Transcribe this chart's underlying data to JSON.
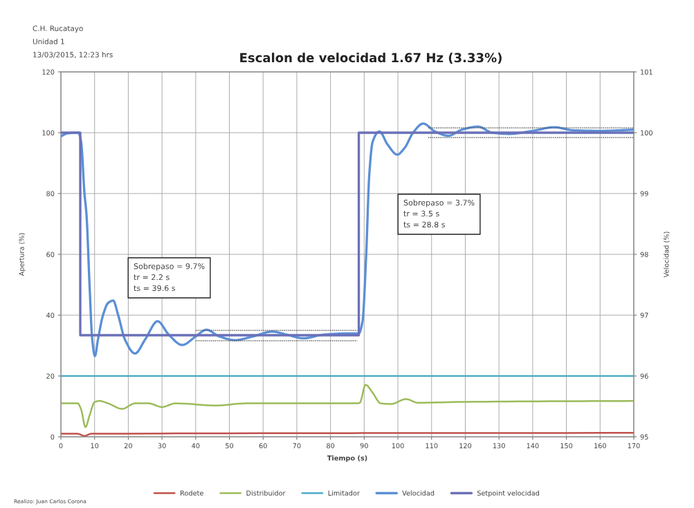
{
  "chart_data": {
    "type": "line",
    "title": "Escalon de velocidad 1.67 Hz (3.33%)",
    "xlabel": "Tiempo (s)",
    "ylabel": "Apertura (%)",
    "y2label": "Velocidad (%)",
    "xlim": [
      0,
      170
    ],
    "xticks": [
      0,
      10,
      20,
      30,
      40,
      50,
      60,
      70,
      80,
      90,
      100,
      110,
      120,
      130,
      140,
      150,
      160,
      170
    ],
    "ylim": [
      0,
      120
    ],
    "yticks": [
      0,
      20,
      40,
      60,
      80,
      100,
      120
    ],
    "y2lim": [
      95,
      101
    ],
    "y2ticks": [
      95,
      96,
      97,
      98,
      99,
      100,
      101
    ],
    "grid": true,
    "legend": "bottom",
    "annotations": [
      "C.H. Rucatayo",
      "Unidad 1",
      "13/03/2015, 12:23 hrs",
      "Sobrepaso = 9.7%\ntr = 2.2 s\nts = 39.6 s",
      "Sobrepaso = 3.7%\ntr = 3.5 s\nts = 28.8 s",
      "Realizo: Juan Carlos Corona"
    ],
    "series": [
      {
        "name": "Rodete",
        "color": "#c0504d",
        "axis": "y",
        "x": [
          0,
          5,
          7,
          9,
          170
        ],
        "values": [
          1,
          1,
          0.3,
          1,
          1.3
        ]
      },
      {
        "name": "Distribuidor",
        "color": "#9bbb59",
        "axis": "y",
        "x": [
          0,
          5,
          6,
          7.3,
          8.5,
          10,
          11.4,
          14,
          18.2,
          22,
          26,
          30,
          34,
          46,
          55,
          70,
          88,
          88.7,
          90.4,
          92.5,
          94.9,
          98,
          102.4,
          106,
          120,
          170
        ],
        "values": [
          11,
          11,
          9,
          3.2,
          7,
          11.4,
          11.8,
          11,
          9.2,
          11,
          11,
          9.8,
          11,
          10.3,
          11,
          11,
          11,
          11.2,
          17.1,
          14.5,
          11,
          10.8,
          12.4,
          11.2,
          11.5,
          11.8
        ]
      },
      {
        "name": "Limitador",
        "color": "#4bacc6",
        "axis": "y",
        "x": [
          0,
          170
        ],
        "values": [
          20,
          20
        ]
      },
      {
        "color": "#555555",
        "axis": "y2",
        "line_style": "dotted",
        "x": [
          40,
          88
        ],
        "values": [
          96.75,
          96.75
        ]
      },
      {
        "color": "#555555",
        "axis": "y2",
        "line_style": "dotted",
        "x": [
          40,
          88
        ],
        "values": [
          96.58,
          96.58
        ]
      },
      {
        "color": "#555555",
        "axis": "y2",
        "line_style": "dotted",
        "x": [
          109,
          170
        ],
        "values": [
          100.08,
          100.08
        ]
      },
      {
        "color": "#555555",
        "axis": "y2",
        "line_style": "dotted",
        "x": [
          109,
          170
        ],
        "values": [
          99.92,
          99.92
        ]
      },
      {
        "name": "Velocidad",
        "color": "#5b8fd6",
        "axis": "y2",
        "x": [
          0,
          2,
          5.2,
          6,
          7,
          7.6,
          8.5,
          9.3,
          10.1,
          11,
          12.5,
          14,
          15.5,
          17,
          19,
          22,
          25,
          28.7,
          32,
          36,
          40,
          43.2,
          47,
          51.7,
          57,
          62.7,
          67,
          72,
          78,
          85,
          88.4,
          89.5,
          90.6,
          91.5,
          92.5,
          94.5,
          97,
          99.8,
          102,
          104.5,
          107.5,
          111,
          115,
          119,
          123.8,
          128,
          133,
          140,
          146.4,
          152,
          160,
          170
        ],
        "values": [
          99.94,
          99.99,
          100.0,
          99.85,
          99.0,
          98.65,
          97.5,
          96.6,
          96.33,
          96.6,
          97.0,
          97.2,
          97.24,
          97.0,
          96.6,
          96.37,
          96.6,
          96.9,
          96.68,
          96.51,
          96.65,
          96.76,
          96.65,
          96.59,
          96.65,
          96.73,
          96.68,
          96.62,
          96.68,
          96.7,
          96.7,
          96.9,
          98.0,
          99.3,
          99.85,
          100.02,
          99.8,
          99.64,
          99.75,
          100.0,
          100.15,
          100.02,
          99.95,
          100.05,
          100.1,
          100.0,
          99.98,
          100.03,
          100.09,
          100.04,
          100.03,
          100.05
        ]
      },
      {
        "name": "Setpoint velocidad",
        "color": "#6a70b8",
        "axis": "y2",
        "x": [
          0,
          5.75,
          5.75,
          88.4,
          88.4,
          170
        ],
        "values": [
          100,
          100,
          96.67,
          96.67,
          100,
          100
        ]
      }
    ]
  }
}
